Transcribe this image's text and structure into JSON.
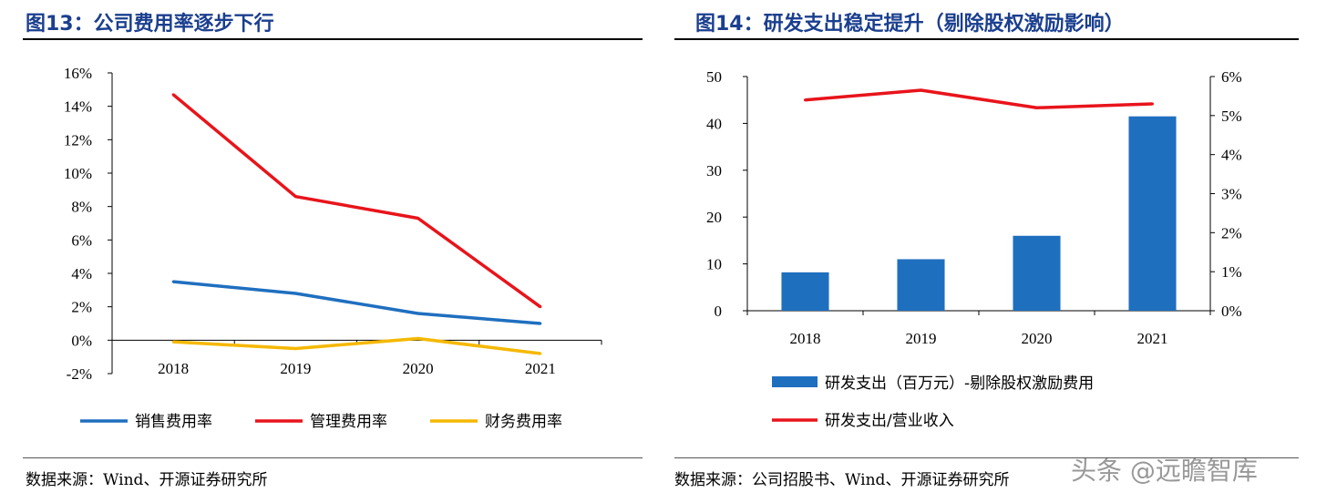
{
  "left": {
    "title": "图13：公司费用率逐步下行",
    "source": "数据来源：Wind、开源证券研究所"
  },
  "right": {
    "title": "图14：研发支出稳定提升（剔除股权激励影响）",
    "source": "数据来源：公司招股书、Wind、开源证券研究所"
  },
  "watermark": "头条 @远瞻智库",
  "chart_data": [
    {
      "type": "line",
      "categories": [
        "2018",
        "2019",
        "2020",
        "2021"
      ],
      "ylim": [
        -0.02,
        0.16
      ],
      "y_ticks": [
        "-2%",
        "0%",
        "2%",
        "4%",
        "6%",
        "8%",
        "10%",
        "12%",
        "14%",
        "16%"
      ],
      "series": [
        {
          "name": "销售费用率",
          "color": "#1f6fbf",
          "values": [
            0.035,
            0.028,
            0.016,
            0.01
          ]
        },
        {
          "name": "管理费用率",
          "color": "#e8141b",
          "values": [
            0.147,
            0.086,
            0.073,
            0.02
          ]
        },
        {
          "name": "财务费用率",
          "color": "#f5b800",
          "values": [
            -0.001,
            -0.005,
            0.001,
            -0.008
          ]
        }
      ],
      "legend": "bottom"
    },
    {
      "type": "bar",
      "categories": [
        "2018",
        "2019",
        "2020",
        "2021"
      ],
      "ylim_left": [
        0,
        50
      ],
      "ylim_right": [
        0,
        0.06
      ],
      "y_ticks_left": [
        "0",
        "10",
        "20",
        "30",
        "40",
        "50"
      ],
      "y_ticks_right": [
        "0%",
        "1%",
        "2%",
        "3%",
        "4%",
        "5%",
        "6%"
      ],
      "series": [
        {
          "name": "研发支出（百万元）-剔除股权激励费用",
          "type": "bar",
          "axis": "left",
          "color": "#1f6fbf",
          "values": [
            8.2,
            11.0,
            16.0,
            41.5
          ]
        },
        {
          "name": "研发支出/营业收入",
          "type": "line",
          "axis": "right",
          "color": "#e8141b",
          "values": [
            0.054,
            0.0565,
            0.052,
            0.053
          ]
        }
      ],
      "legend": "bottom"
    }
  ]
}
